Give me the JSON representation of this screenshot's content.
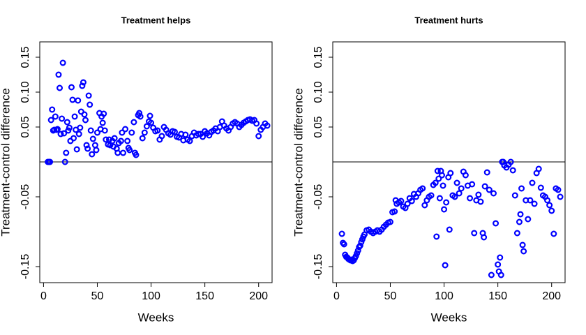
{
  "chart_data": [
    {
      "type": "scatter",
      "title": "Treatment helps",
      "x_label": "Weeks",
      "y_label": "Treatment-control difference",
      "color": "#0000ff",
      "hline": 0,
      "xlim": [
        -3.5,
        212.5
      ],
      "ylim": [
        -0.173,
        0.172
      ],
      "xticks": [
        0,
        50,
        100,
        150,
        200
      ],
      "yticks": [
        -0.15,
        -0.05,
        0.05,
        {
          "value": 0.1,
          "label": "0.10"
        },
        0.15
      ],
      "x": [
        4,
        5,
        6,
        7,
        8,
        9,
        10,
        11,
        12,
        13,
        14,
        15,
        16,
        17,
        18,
        19,
        20,
        21,
        22,
        23,
        24,
        25,
        26,
        27,
        28,
        29,
        30,
        31,
        32,
        33,
        34,
        35,
        36,
        37,
        38,
        39,
        40,
        41,
        42,
        43,
        44,
        45,
        46,
        48,
        49,
        50,
        52,
        53,
        54,
        55,
        56,
        57,
        58,
        60,
        61,
        62,
        64,
        65,
        66,
        68,
        69,
        70,
        72,
        73,
        74,
        76,
        78,
        79,
        80,
        82,
        84,
        85,
        86,
        88,
        89,
        90,
        92,
        94,
        96,
        98,
        99,
        100,
        102,
        104,
        106,
        108,
        110,
        112,
        114,
        116,
        118,
        120,
        122,
        124,
        126,
        128,
        130,
        132,
        134,
        136,
        138,
        140,
        142,
        144,
        146,
        148,
        150,
        152,
        154,
        156,
        158,
        160,
        162,
        164,
        166,
        168,
        170,
        172,
        174,
        176,
        178,
        180,
        182,
        184,
        186,
        188,
        190,
        192,
        194,
        196,
        198,
        200,
        202,
        204,
        206,
        208
      ],
      "values": [
        0,
        0,
        0,
        0.06,
        0.075,
        0.045,
        0.046,
        0.065,
        0.046,
        0.047,
        0.125,
        0.106,
        0.04,
        0.062,
        0.142,
        0.041,
        0,
        0.013,
        0.057,
        0.045,
        0.049,
        0.03,
        0.107,
        0.089,
        0.034,
        0.065,
        0.046,
        0.018,
        0.088,
        0.04,
        0.049,
        0.072,
        0.109,
        0.114,
        0.068,
        0.06,
        0.024,
        0.019,
        0.095,
        0.082,
        0.045,
        0.011,
        0.033,
        0.024,
        0.017,
        0.042,
        0.07,
        0.047,
        0.065,
        0.056,
        0.069,
        0.045,
        0.032,
        0.025,
        0.032,
        0.024,
        0.03,
        0.022,
        0.034,
        0.019,
        0.013,
        0.027,
        0.03,
        0.042,
        0.013,
        0.047,
        0.03,
        0.02,
        0.017,
        0.042,
        0.057,
        0.013,
        0.01,
        0.067,
        0.07,
        0.065,
        0.034,
        0.042,
        0.051,
        0.058,
        0.066,
        0.056,
        0.049,
        0.044,
        0.045,
        0.032,
        0.037,
        0.05,
        0.046,
        0.041,
        0.039,
        0.044,
        0.043,
        0.036,
        0.035,
        0.04,
        0.031,
        0.039,
        0.032,
        0.03,
        0.037,
        0.042,
        0.038,
        0.04,
        0.04,
        0.036,
        0.044,
        0.041,
        0.038,
        0.043,
        0.045,
        0.048,
        0.044,
        0.05,
        0.058,
        0.052,
        0.048,
        0.045,
        0.05,
        0.055,
        0.057,
        0.055,
        0.05,
        0.053,
        0.056,
        0.058,
        0.06,
        0.061,
        0.059,
        0.06,
        0.055,
        0.037,
        0.046,
        0.05,
        0.055,
        0.052
      ]
    },
    {
      "type": "scatter",
      "title": "Treatment hurts",
      "x_label": "Weeks",
      "y_label": "Treatment-control difference",
      "color": "#0000ff",
      "hline": 0,
      "xlim": [
        -3.5,
        212.5
      ],
      "ylim": [
        -0.173,
        0.172
      ],
      "xticks": [
        0,
        50,
        100,
        150,
        200
      ],
      "yticks": [
        -0.15,
        -0.05,
        0.05,
        {
          "value": 0.1,
          "label": "0.10"
        },
        0.15
      ],
      "x": [
        5,
        6,
        7,
        8,
        9,
        10,
        11,
        12,
        13,
        14,
        15,
        16,
        17,
        18,
        19,
        20,
        21,
        22,
        23,
        24,
        25,
        26,
        28,
        30,
        32,
        34,
        36,
        38,
        40,
        42,
        44,
        46,
        48,
        50,
        52,
        54,
        55,
        56,
        58,
        60,
        62,
        64,
        66,
        68,
        70,
        72,
        74,
        76,
        78,
        80,
        82,
        84,
        86,
        88,
        90,
        92,
        93,
        94,
        95,
        96,
        97,
        98,
        99,
        100,
        101,
        102,
        104,
        105,
        106,
        108,
        110,
        112,
        114,
        116,
        118,
        120,
        122,
        124,
        126,
        128,
        130,
        132,
        134,
        136,
        137,
        138,
        140,
        142,
        144,
        146,
        148,
        150,
        151,
        152,
        153,
        154,
        155,
        156,
        158,
        160,
        162,
        164,
        166,
        168,
        170,
        171,
        172,
        173,
        174,
        176,
        178,
        180,
        182,
        184,
        186,
        188,
        190,
        192,
        194,
        196,
        198,
        200,
        202,
        204,
        206,
        208
      ],
      "values": [
        -0.103,
        -0.116,
        -0.118,
        -0.133,
        -0.136,
        -0.137,
        -0.139,
        -0.14,
        -0.141,
        -0.14,
        -0.142,
        -0.141,
        -0.138,
        -0.135,
        -0.131,
        -0.127,
        -0.122,
        -0.12,
        -0.115,
        -0.111,
        -0.107,
        -0.104,
        -0.098,
        -0.097,
        -0.1,
        -0.102,
        -0.1,
        -0.098,
        -0.1,
        -0.097,
        -0.093,
        -0.09,
        -0.087,
        -0.086,
        -0.072,
        -0.071,
        -0.055,
        -0.06,
        -0.058,
        -0.056,
        -0.064,
        -0.066,
        -0.06,
        -0.052,
        -0.056,
        -0.046,
        -0.05,
        -0.045,
        -0.04,
        -0.038,
        -0.062,
        -0.055,
        -0.05,
        -0.048,
        -0.033,
        -0.03,
        -0.107,
        -0.013,
        -0.024,
        -0.052,
        -0.013,
        -0.019,
        -0.034,
        -0.068,
        -0.148,
        -0.058,
        -0.022,
        -0.097,
        -0.016,
        -0.048,
        -0.05,
        -0.03,
        -0.045,
        -0.038,
        -0.014,
        -0.019,
        -0.034,
        -0.052,
        -0.032,
        -0.102,
        -0.055,
        -0.047,
        -0.057,
        -0.102,
        -0.108,
        -0.035,
        -0.015,
        -0.04,
        -0.162,
        -0.045,
        -0.088,
        -0.147,
        -0.157,
        -0.137,
        -0.162,
        0,
        0,
        -0.005,
        -0.008,
        -0.004,
        0,
        -0.012,
        -0.048,
        -0.102,
        -0.086,
        -0.075,
        -0.038,
        -0.119,
        -0.128,
        -0.055,
        -0.082,
        -0.055,
        -0.03,
        -0.06,
        -0.016,
        -0.01,
        -0.037,
        -0.048,
        -0.05,
        -0.055,
        -0.062,
        -0.07,
        -0.103,
        -0.038,
        -0.04,
        -0.05
      ]
    }
  ]
}
